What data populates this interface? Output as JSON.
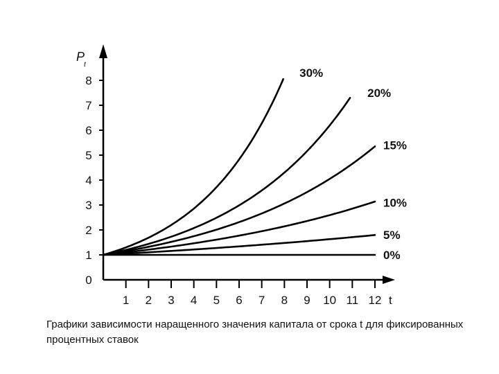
{
  "caption": "Графики зависимости наращенного значения капитала от срока t для фиксированных процентных ставок",
  "chart_data": {
    "type": "line",
    "xlabel": "t",
    "ylabel": "P",
    "ylabel_sub": "t",
    "xlim": [
      0,
      12
    ],
    "ylim": [
      0,
      8
    ],
    "x_ticks": [
      "1",
      "2",
      "3",
      "4",
      "5",
      "6",
      "7",
      "8",
      "9",
      "10",
      "11",
      "12"
    ],
    "y_ticks": [
      "0",
      "1",
      "2",
      "3",
      "4",
      "5",
      "6",
      "7",
      "8"
    ],
    "grid": false,
    "series": [
      {
        "name": "0%",
        "rate": 0.0,
        "x_end": 12.0,
        "label_at": [
          12.0,
          1.0
        ]
      },
      {
        "name": "5%",
        "rate": 0.05,
        "x_end": 12.0,
        "label_at": [
          12.0,
          1.8
        ]
      },
      {
        "name": "10%",
        "rate": 0.1,
        "x_end": 12.0,
        "label_at": [
          12.0,
          3.1
        ]
      },
      {
        "name": "15%",
        "rate": 0.15,
        "x_end": 12.0,
        "label_at": [
          12.0,
          5.4
        ]
      },
      {
        "name": "20%",
        "rate": 0.2,
        "x_end": 10.9,
        "label_at": [
          11.3,
          7.5
        ]
      },
      {
        "name": "30%",
        "rate": 0.3,
        "x_end": 7.95,
        "label_at": [
          8.3,
          8.3
        ]
      }
    ],
    "color": "#000000"
  }
}
